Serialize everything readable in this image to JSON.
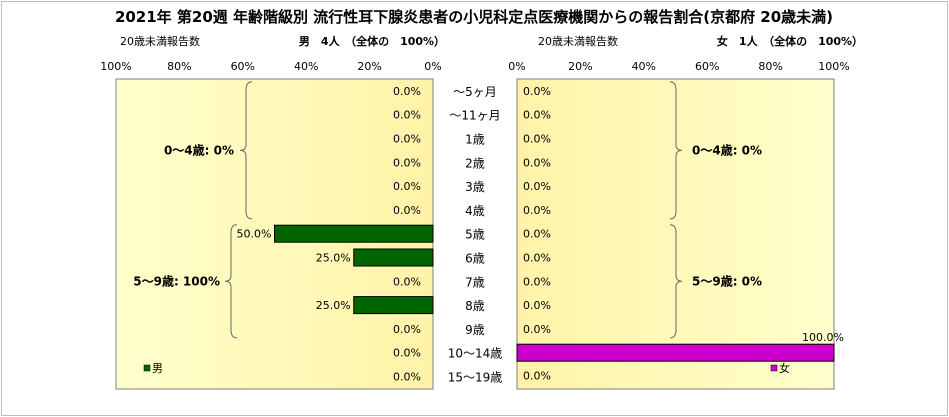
{
  "chart_data": {
    "type": "bar",
    "title": "2021年 第20週 年齢階級別 流行性耳下腺炎患者の小児科定点医療機関からの報告割合(京都府 20歳未満)",
    "categories": [
      "〜5ヶ月",
      "〜11ヶ月",
      "1歳",
      "2歳",
      "3歳",
      "4歳",
      "5歳",
      "6歳",
      "7歳",
      "8歳",
      "9歳",
      "10〜14歳",
      "15〜19歳"
    ],
    "xlim": [
      0,
      100
    ],
    "male": {
      "section_label": "20歳未満報告数",
      "header": "男　4人　（全体の　100%）",
      "legend": "男",
      "color": "#006400",
      "tick_labels": [
        "100%",
        "80%",
        "60%",
        "40%",
        "20%",
        "0%"
      ],
      "values": [
        0,
        0,
        0,
        0,
        0,
        0,
        50,
        25,
        0,
        25,
        0,
        0,
        0
      ],
      "value_labels": [
        "0.0%",
        "0.0%",
        "0.0%",
        "0.0%",
        "0.0%",
        "0.0%",
        "50.0%",
        "25.0%",
        "0.0%",
        "25.0%",
        "0.0%",
        "0.0%",
        "0.0%"
      ],
      "group_labels": [
        "0〜4歳: 0%",
        "5〜9歳: 100%"
      ]
    },
    "female": {
      "section_label": "20歳未満報告数",
      "header": "女　1人　（全体の　100%）",
      "legend": "女",
      "color": "#cc00cc",
      "tick_labels": [
        "0%",
        "20%",
        "40%",
        "60%",
        "80%",
        "100%"
      ],
      "values": [
        0,
        0,
        0,
        0,
        0,
        0,
        0,
        0,
        0,
        0,
        0,
        100,
        0
      ],
      "value_labels": [
        "0.0%",
        "0.0%",
        "0.0%",
        "0.0%",
        "0.0%",
        "0.0%",
        "0.0%",
        "0.0%",
        "0.0%",
        "0.0%",
        "0.0%",
        "100.0%",
        "0.0%"
      ],
      "group_labels": [
        "0〜4歳: 0%",
        "5〜9歳: 0%"
      ]
    },
    "colors": {
      "band_light": "#ffffcc",
      "band_dark": "#fff3a8"
    }
  }
}
